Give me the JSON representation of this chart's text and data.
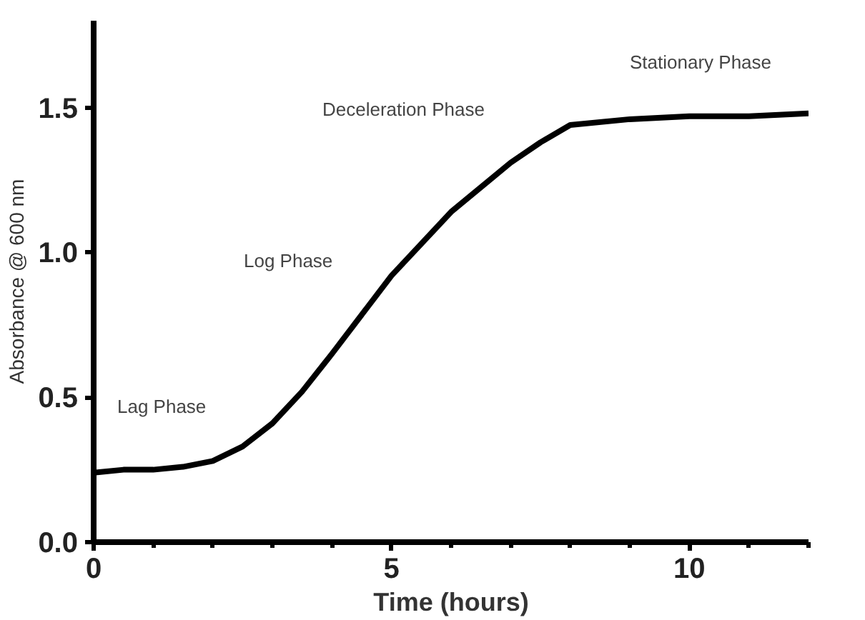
{
  "chart_data": {
    "type": "line",
    "xlabel": "Time (hours)",
    "ylabel": "Absorbance @ 600 nm",
    "x": [
      0,
      0.5,
      1,
      1.5,
      2,
      2.5,
      3,
      3.5,
      4,
      5,
      6,
      7,
      7.5,
      8,
      9,
      10,
      11,
      12
    ],
    "series": [
      {
        "color": "#000000",
        "values": [
          0.24,
          0.25,
          0.25,
          0.26,
          0.28,
          0.33,
          0.41,
          0.52,
          0.65,
          0.92,
          1.14,
          1.31,
          1.38,
          1.44,
          1.46,
          1.47,
          1.47,
          1.48
        ]
      }
    ],
    "xlim": [
      0,
      12
    ],
    "ylim": [
      0,
      1.8
    ],
    "xticks": [
      0,
      5,
      10
    ],
    "yticks": [
      {
        "value": 0,
        "label": "0.0"
      },
      {
        "value": 0.5,
        "label": "0.5"
      },
      {
        "value": 1,
        "label": "1.0"
      },
      {
        "value": 1.5,
        "label": "1.5"
      }
    ],
    "annotations": [
      "Lag Phase",
      "Log Phase",
      "Deceleration Phase",
      "Stationary Phase"
    ],
    "grid": false,
    "marker": "none",
    "line_style": "solid"
  }
}
